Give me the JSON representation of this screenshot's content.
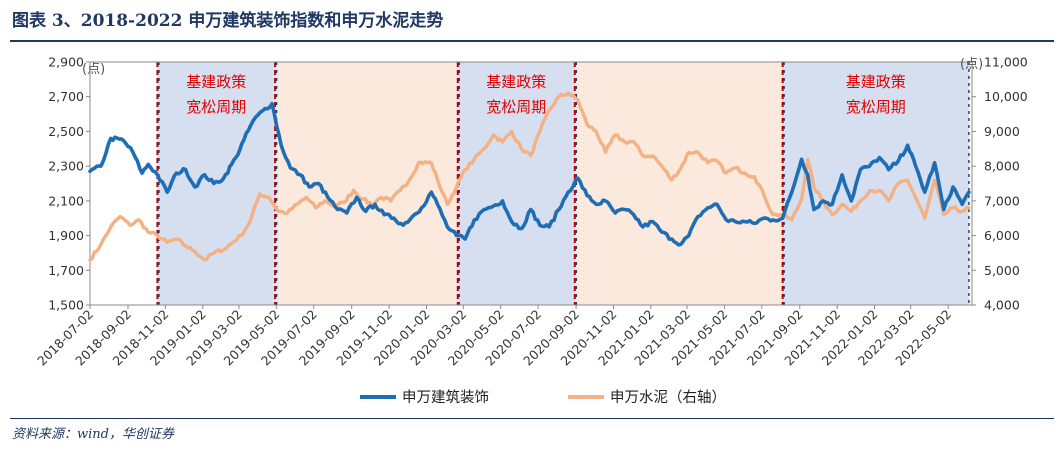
{
  "header": {
    "title": "图表 3、2018-2022 申万建筑装饰指数和申万水泥走势"
  },
  "footer": {
    "source": "资料来源：wind，华创证券"
  },
  "chart_data": {
    "type": "line",
    "left_axis": {
      "unit": "(点)",
      "min": 1500,
      "max": 2900,
      "ticks": [
        "1,500",
        "1,700",
        "1,900",
        "2,100",
        "2,300",
        "2,500",
        "2,700",
        "2,900"
      ]
    },
    "right_axis": {
      "unit": "(点)",
      "min": 4000,
      "max": 11000,
      "ticks": [
        "4,000",
        "5,000",
        "6,000",
        "7,000",
        "8,000",
        "9,000",
        "10,000",
        "11,000"
      ]
    },
    "x_range": [
      "2018-07-02",
      "2022-06-10"
    ],
    "x_tick_labels": [
      "2018-07-02",
      "2018-09-02",
      "2018-11-02",
      "2019-01-02",
      "2019-03-02",
      "2019-05-02",
      "2019-07-02",
      "2019-09-02",
      "2019-11-02",
      "2020-01-02",
      "2020-03-02",
      "2020-05-02",
      "2020-07-02",
      "2020-09-02",
      "2020-11-02",
      "2021-01-02",
      "2021-03-02",
      "2021-05-02",
      "2021-07-02",
      "2021-09-02",
      "2021-11-02",
      "2022-01-02",
      "2022-03-02",
      "2022-05-02"
    ],
    "shaded_periods": [
      {
        "start": "2018-10-20",
        "end": "2019-04-30",
        "label": [
          "基建政策",
          "宽松周期"
        ],
        "color": "#d6dff0"
      },
      {
        "start": "2019-04-30",
        "end": "2020-02-22",
        "label": [
          "",
          ""
        ],
        "color": "#fbe9dd"
      },
      {
        "start": "2020-02-22",
        "end": "2020-08-31",
        "label": [
          "基建政策",
          "宽松周期"
        ],
        "color": "#d6dff0"
      },
      {
        "start": "2020-08-31",
        "end": "2021-08-05",
        "label": [
          "",
          ""
        ],
        "color": "#fbe9dd"
      },
      {
        "start": "2021-08-05",
        "end": "2022-06-05",
        "label": [
          "基建政策",
          "宽松周期"
        ],
        "color": "#d6dff0"
      }
    ],
    "series": [
      {
        "name": "申万建筑装饰",
        "axis": "left",
        "color": "#1f6eb5",
        "points": [
          [
            "2018-07-02",
            2270
          ],
          [
            "2018-07-20",
            2300
          ],
          [
            "2018-08-05",
            2460
          ],
          [
            "2018-08-25",
            2450
          ],
          [
            "2018-09-10",
            2380
          ],
          [
            "2018-09-25",
            2260
          ],
          [
            "2018-10-05",
            2310
          ],
          [
            "2018-10-20",
            2250
          ],
          [
            "2018-11-05",
            2150
          ],
          [
            "2018-11-20",
            2260
          ],
          [
            "2018-12-05",
            2280
          ],
          [
            "2018-12-20",
            2180
          ],
          [
            "2019-01-05",
            2250
          ],
          [
            "2019-01-20",
            2200
          ],
          [
            "2019-02-05",
            2230
          ],
          [
            "2019-02-25",
            2350
          ],
          [
            "2019-03-10",
            2450
          ],
          [
            "2019-03-25",
            2560
          ],
          [
            "2019-04-10",
            2620
          ],
          [
            "2019-04-25",
            2660
          ],
          [
            "2019-05-10",
            2420
          ],
          [
            "2019-05-25",
            2290
          ],
          [
            "2019-06-10",
            2250
          ],
          [
            "2019-06-25",
            2180
          ],
          [
            "2019-07-10",
            2200
          ],
          [
            "2019-07-25",
            2120
          ],
          [
            "2019-08-10",
            2050
          ],
          [
            "2019-08-25",
            2030
          ],
          [
            "2019-09-10",
            2120
          ],
          [
            "2019-09-25",
            2040
          ],
          [
            "2019-10-10",
            2080
          ],
          [
            "2019-10-25",
            2020
          ],
          [
            "2019-11-10",
            2000
          ],
          [
            "2019-11-25",
            1960
          ],
          [
            "2019-12-10",
            2010
          ],
          [
            "2019-12-25",
            2060
          ],
          [
            "2020-01-10",
            2150
          ],
          [
            "2020-01-20",
            2080
          ],
          [
            "2020-02-05",
            1950
          ],
          [
            "2020-02-20",
            1900
          ],
          [
            "2020-03-05",
            1880
          ],
          [
            "2020-03-20",
            1990
          ],
          [
            "2020-04-05",
            2050
          ],
          [
            "2020-04-20",
            2070
          ],
          [
            "2020-05-05",
            2100
          ],
          [
            "2020-05-20",
            1980
          ],
          [
            "2020-06-05",
            1940
          ],
          [
            "2020-06-20",
            2050
          ],
          [
            "2020-07-05",
            1960
          ],
          [
            "2020-07-20",
            1950
          ],
          [
            "2020-08-05",
            2050
          ],
          [
            "2020-08-20",
            2150
          ],
          [
            "2020-09-05",
            2230
          ],
          [
            "2020-09-20",
            2130
          ],
          [
            "2020-10-05",
            2080
          ],
          [
            "2020-10-20",
            2100
          ],
          [
            "2020-11-05",
            2030
          ],
          [
            "2020-11-20",
            2050
          ],
          [
            "2020-12-05",
            2020
          ],
          [
            "2020-12-20",
            1950
          ],
          [
            "2021-01-05",
            1980
          ],
          [
            "2021-01-20",
            1920
          ],
          [
            "2021-02-05",
            1880
          ],
          [
            "2021-02-20",
            1850
          ],
          [
            "2021-03-05",
            1900
          ],
          [
            "2021-03-20",
            2010
          ],
          [
            "2021-04-05",
            2060
          ],
          [
            "2021-04-20",
            2080
          ],
          [
            "2021-05-05",
            1990
          ],
          [
            "2021-05-20",
            1980
          ],
          [
            "2021-06-05",
            1980
          ],
          [
            "2021-06-20",
            1970
          ],
          [
            "2021-07-05",
            2000
          ],
          [
            "2021-07-20",
            1990
          ],
          [
            "2021-08-05",
            2000
          ],
          [
            "2021-08-20",
            2150
          ],
          [
            "2021-09-05",
            2340
          ],
          [
            "2021-09-15",
            2250
          ],
          [
            "2021-09-25",
            2050
          ],
          [
            "2021-10-10",
            2100
          ],
          [
            "2021-10-25",
            2080
          ],
          [
            "2021-11-10",
            2250
          ],
          [
            "2021-11-25",
            2100
          ],
          [
            "2021-12-10",
            2280
          ],
          [
            "2021-12-25",
            2300
          ],
          [
            "2022-01-10",
            2350
          ],
          [
            "2022-01-25",
            2280
          ],
          [
            "2022-02-10",
            2330
          ],
          [
            "2022-02-25",
            2420
          ],
          [
            "2022-03-10",
            2300
          ],
          [
            "2022-03-25",
            2150
          ],
          [
            "2022-04-10",
            2320
          ],
          [
            "2022-04-25",
            2050
          ],
          [
            "2022-05-10",
            2180
          ],
          [
            "2022-05-25",
            2080
          ],
          [
            "2022-06-05",
            2150
          ]
        ]
      },
      {
        "name": "申万水泥（右轴）",
        "axis": "right",
        "color": "#f4b183",
        "points": [
          [
            "2018-07-02",
            5300
          ],
          [
            "2018-07-20",
            5750
          ],
          [
            "2018-08-05",
            6250
          ],
          [
            "2018-08-20",
            6550
          ],
          [
            "2018-09-05",
            6300
          ],
          [
            "2018-09-20",
            6450
          ],
          [
            "2018-10-05",
            6100
          ],
          [
            "2018-10-20",
            6000
          ],
          [
            "2018-11-05",
            5800
          ],
          [
            "2018-11-20",
            5900
          ],
          [
            "2018-12-05",
            5700
          ],
          [
            "2018-12-20",
            5550
          ],
          [
            "2019-01-05",
            5300
          ],
          [
            "2019-01-20",
            5500
          ],
          [
            "2019-02-05",
            5600
          ],
          [
            "2019-02-20",
            5800
          ],
          [
            "2019-03-05",
            6000
          ],
          [
            "2019-03-20",
            6400
          ],
          [
            "2019-04-05",
            7200
          ],
          [
            "2019-04-20",
            7100
          ],
          [
            "2019-05-05",
            6700
          ],
          [
            "2019-05-20",
            6650
          ],
          [
            "2019-06-05",
            6900
          ],
          [
            "2019-06-20",
            7100
          ],
          [
            "2019-07-05",
            6800
          ],
          [
            "2019-07-20",
            7000
          ],
          [
            "2019-08-05",
            6850
          ],
          [
            "2019-08-20",
            6950
          ],
          [
            "2019-09-05",
            7300
          ],
          [
            "2019-09-20",
            7050
          ],
          [
            "2019-10-05",
            6900
          ],
          [
            "2019-10-20",
            7100
          ],
          [
            "2019-11-05",
            7000
          ],
          [
            "2019-11-20",
            7300
          ],
          [
            "2019-12-05",
            7600
          ],
          [
            "2019-12-20",
            8100
          ],
          [
            "2020-01-10",
            8100
          ],
          [
            "2020-01-20",
            7600
          ],
          [
            "2020-02-05",
            6900
          ],
          [
            "2020-02-20",
            7400
          ],
          [
            "2020-03-05",
            7900
          ],
          [
            "2020-03-20",
            8200
          ],
          [
            "2020-04-05",
            8500
          ],
          [
            "2020-04-20",
            8900
          ],
          [
            "2020-05-05",
            8700
          ],
          [
            "2020-05-20",
            9000
          ],
          [
            "2020-06-05",
            8500
          ],
          [
            "2020-06-20",
            8300
          ],
          [
            "2020-07-05",
            9000
          ],
          [
            "2020-07-20",
            9600
          ],
          [
            "2020-08-05",
            10000
          ],
          [
            "2020-08-20",
            10100
          ],
          [
            "2020-09-05",
            9900
          ],
          [
            "2020-09-20",
            9200
          ],
          [
            "2020-10-05",
            9000
          ],
          [
            "2020-10-20",
            8400
          ],
          [
            "2020-11-05",
            8900
          ],
          [
            "2020-11-20",
            8700
          ],
          [
            "2020-12-05",
            8700
          ],
          [
            "2020-12-20",
            8300
          ],
          [
            "2021-01-05",
            8300
          ],
          [
            "2021-01-20",
            8000
          ],
          [
            "2021-02-05",
            7600
          ],
          [
            "2021-02-20",
            7950
          ],
          [
            "2021-03-05",
            8400
          ],
          [
            "2021-03-20",
            8400
          ],
          [
            "2021-04-05",
            8100
          ],
          [
            "2021-04-20",
            8150
          ],
          [
            "2021-05-05",
            7800
          ],
          [
            "2021-05-20",
            7950
          ],
          [
            "2021-06-05",
            7800
          ],
          [
            "2021-06-20",
            7700
          ],
          [
            "2021-07-05",
            7200
          ],
          [
            "2021-07-20",
            6600
          ],
          [
            "2021-08-05",
            6600
          ],
          [
            "2021-08-20",
            6450
          ],
          [
            "2021-09-05",
            7050
          ],
          [
            "2021-09-15",
            8200
          ],
          [
            "2021-09-25",
            7400
          ],
          [
            "2021-10-10",
            7000
          ],
          [
            "2021-10-25",
            6600
          ],
          [
            "2021-11-10",
            6900
          ],
          [
            "2021-11-25",
            6700
          ],
          [
            "2021-12-10",
            7000
          ],
          [
            "2021-12-25",
            7300
          ],
          [
            "2022-01-10",
            7300
          ],
          [
            "2022-01-25",
            7000
          ],
          [
            "2022-02-10",
            7500
          ],
          [
            "2022-02-25",
            7600
          ],
          [
            "2022-03-10",
            7100
          ],
          [
            "2022-03-25",
            6500
          ],
          [
            "2022-04-10",
            7600
          ],
          [
            "2022-04-25",
            6600
          ],
          [
            "2022-05-10",
            6800
          ],
          [
            "2022-05-25",
            6700
          ],
          [
            "2022-06-05",
            6800
          ]
        ]
      }
    ],
    "legend_position": "bottom-center",
    "grid": false
  }
}
